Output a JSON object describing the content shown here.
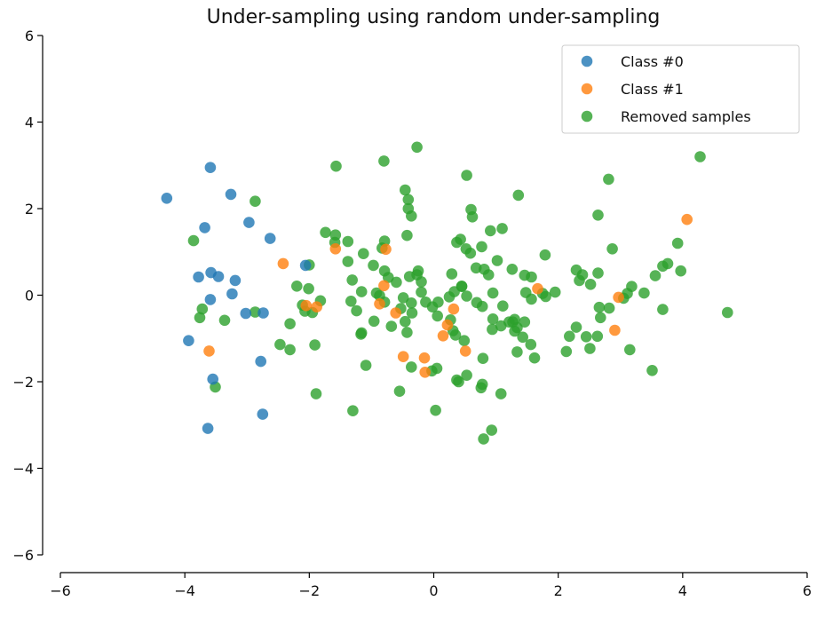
{
  "chart_data": {
    "type": "scatter",
    "title": "Under-sampling using random under-sampling",
    "xlabel": "",
    "ylabel": "",
    "xlim": [
      -6,
      6
    ],
    "ylim": [
      -6,
      6
    ],
    "x_ticks": [
      -6,
      -4,
      -2,
      0,
      2,
      4,
      6
    ],
    "y_ticks": [
      -6,
      -4,
      -2,
      0,
      2,
      4,
      6
    ],
    "x_tick_labels": [
      "−6",
      "−4",
      "−2",
      "0",
      "2",
      "4",
      "6"
    ],
    "y_tick_labels": [
      "−6",
      "−4",
      "−2",
      "0",
      "2",
      "4",
      "6"
    ],
    "grid": false,
    "legend_position": "top-right",
    "series": [
      {
        "name": "Class #0",
        "color": "#1f77b4",
        "points": [
          [
            -4.29,
            2.24
          ],
          [
            -3.59,
            2.95
          ],
          [
            -3.26,
            2.33
          ],
          [
            -3.68,
            1.56
          ],
          [
            -2.97,
            1.68
          ],
          [
            -2.63,
            1.31
          ],
          [
            -2.06,
            0.69
          ],
          [
            -3.78,
            0.42
          ],
          [
            -3.58,
            0.52
          ],
          [
            -3.46,
            0.43
          ],
          [
            -3.19,
            0.34
          ],
          [
            -3.24,
            0.03
          ],
          [
            -3.59,
            -0.1
          ],
          [
            -3.02,
            -0.42
          ],
          [
            -2.74,
            -0.41
          ],
          [
            -3.94,
            -1.05
          ],
          [
            -2.78,
            -1.53
          ],
          [
            -3.55,
            -1.94
          ],
          [
            -2.75,
            -2.75
          ],
          [
            -3.63,
            -3.08
          ]
        ]
      },
      {
        "name": "Class #1",
        "color": "#ff7f0e",
        "points": [
          [
            4.07,
            1.75
          ],
          [
            -2.42,
            0.73
          ],
          [
            -1.58,
            1.07
          ],
          [
            -0.77,
            1.06
          ],
          [
            -0.8,
            0.22
          ],
          [
            -2.05,
            -0.24
          ],
          [
            -1.88,
            -0.27
          ],
          [
            -0.87,
            -0.2
          ],
          [
            0.32,
            -0.32
          ],
          [
            2.97,
            -0.05
          ],
          [
            1.67,
            0.15
          ],
          [
            -0.49,
            -1.42
          ],
          [
            -0.15,
            -1.45
          ],
          [
            0.15,
            -0.94
          ],
          [
            0.51,
            -1.29
          ],
          [
            -0.14,
            -1.78
          ],
          [
            -3.61,
            -1.29
          ],
          [
            2.91,
            -0.81
          ],
          [
            0.22,
            -0.69
          ],
          [
            -0.61,
            -0.41
          ]
        ]
      },
      {
        "name": "Removed samples",
        "color": "#2ca02c",
        "points": [
          [
            -0.27,
            3.42
          ],
          [
            4.28,
            3.2
          ],
          [
            -0.8,
            3.1
          ],
          [
            -1.57,
            2.98
          ],
          [
            0.53,
            2.77
          ],
          [
            2.81,
            2.68
          ],
          [
            -2.87,
            2.17
          ],
          [
            -0.46,
            2.43
          ],
          [
            -0.41,
            2.21
          ],
          [
            1.36,
            2.31
          ],
          [
            -0.41,
            2.0
          ],
          [
            -0.36,
            1.83
          ],
          [
            0.6,
            1.98
          ],
          [
            0.62,
            1.81
          ],
          [
            2.64,
            1.85
          ],
          [
            -3.86,
            1.26
          ],
          [
            -1.74,
            1.45
          ],
          [
            -1.58,
            1.39
          ],
          [
            -1.59,
            1.22
          ],
          [
            -1.38,
            1.24
          ],
          [
            -0.79,
            1.25
          ],
          [
            -0.83,
            1.09
          ],
          [
            -0.43,
            1.38
          ],
          [
            0.37,
            1.22
          ],
          [
            0.43,
            1.29
          ],
          [
            0.52,
            1.07
          ],
          [
            0.59,
            0.97
          ],
          [
            0.77,
            1.12
          ],
          [
            0.91,
            1.49
          ],
          [
            1.1,
            1.54
          ],
          [
            2.87,
            1.07
          ],
          [
            3.92,
            1.2
          ],
          [
            -1.13,
            0.96
          ],
          [
            -1.38,
            0.78
          ],
          [
            -0.97,
            0.69
          ],
          [
            -2.0,
            0.7
          ],
          [
            -0.79,
            0.56
          ],
          [
            -0.73,
            0.41
          ],
          [
            -0.6,
            0.3
          ],
          [
            -0.39,
            0.43
          ],
          [
            -0.25,
            0.56
          ],
          [
            -0.27,
            0.47
          ],
          [
            -0.2,
            0.31
          ],
          [
            0.29,
            0.49
          ],
          [
            0.45,
            0.2
          ],
          [
            0.68,
            0.63
          ],
          [
            0.81,
            0.6
          ],
          [
            0.88,
            0.47
          ],
          [
            1.02,
            0.8
          ],
          [
            1.26,
            0.6
          ],
          [
            1.46,
            0.46
          ],
          [
            1.57,
            0.42
          ],
          [
            1.79,
            0.93
          ],
          [
            2.29,
            0.58
          ],
          [
            2.34,
            0.34
          ],
          [
            2.39,
            0.47
          ],
          [
            2.52,
            0.25
          ],
          [
            2.64,
            0.51
          ],
          [
            3.38,
            0.05
          ],
          [
            3.56,
            0.45
          ],
          [
            3.68,
            0.67
          ],
          [
            3.76,
            0.73
          ],
          [
            3.97,
            0.56
          ],
          [
            -2.2,
            0.21
          ],
          [
            -2.01,
            0.15
          ],
          [
            -1.31,
            0.35
          ],
          [
            -1.16,
            0.08
          ],
          [
            -0.92,
            0.05
          ],
          [
            -0.87,
            -0.01
          ],
          [
            -0.79,
            -0.16
          ],
          [
            -0.49,
            -0.06
          ],
          [
            -0.53,
            -0.31
          ],
          [
            -0.35,
            -0.41
          ],
          [
            -0.2,
            0.07
          ],
          [
            -0.13,
            -0.16
          ],
          [
            -0.02,
            -0.27
          ],
          [
            0.07,
            -0.16
          ],
          [
            0.06,
            -0.48
          ],
          [
            0.25,
            -0.04
          ],
          [
            0.33,
            0.08
          ],
          [
            0.45,
            0.21
          ],
          [
            0.53,
            -0.02
          ],
          [
            0.69,
            -0.17
          ],
          [
            0.78,
            -0.26
          ],
          [
            0.95,
            0.05
          ],
          [
            1.11,
            -0.25
          ],
          [
            1.27,
            -0.62
          ],
          [
            1.34,
            -0.75
          ],
          [
            1.48,
            0.06
          ],
          [
            1.57,
            -0.09
          ],
          [
            1.75,
            0.04
          ],
          [
            1.8,
            -0.03
          ],
          [
            1.95,
            0.07
          ],
          [
            2.66,
            -0.28
          ],
          [
            2.82,
            -0.3
          ],
          [
            3.05,
            -0.07
          ],
          [
            3.11,
            0.04
          ],
          [
            3.18,
            0.2
          ],
          [
            3.68,
            -0.33
          ],
          [
            4.72,
            -0.4
          ],
          [
            -3.72,
            -0.32
          ],
          [
            -3.76,
            -0.52
          ],
          [
            -3.36,
            -0.58
          ],
          [
            -2.87,
            -0.39
          ],
          [
            -2.31,
            -0.66
          ],
          [
            -2.11,
            -0.23
          ],
          [
            -2.07,
            -0.37
          ],
          [
            -1.95,
            -0.4
          ],
          [
            -1.82,
            -0.13
          ],
          [
            -1.33,
            -0.14
          ],
          [
            -1.16,
            -0.87
          ],
          [
            -1.24,
            -0.36
          ],
          [
            -1.17,
            -0.9
          ],
          [
            -0.96,
            -0.6
          ],
          [
            -0.68,
            -0.72
          ],
          [
            -0.43,
            -0.86
          ],
          [
            -0.46,
            -0.61
          ],
          [
            -0.36,
            -0.18
          ],
          [
            0.27,
            -0.57
          ],
          [
            0.31,
            -0.82
          ],
          [
            0.35,
            -0.92
          ],
          [
            0.49,
            -1.05
          ],
          [
            0.94,
            -0.79
          ],
          [
            0.95,
            -0.55
          ],
          [
            1.08,
            -0.71
          ],
          [
            1.21,
            -0.62
          ],
          [
            1.3,
            -0.56
          ],
          [
            1.3,
            -0.83
          ],
          [
            1.43,
            -0.97
          ],
          [
            1.46,
            -0.62
          ],
          [
            1.56,
            -1.14
          ],
          [
            1.34,
            -1.31
          ],
          [
            2.13,
            -1.3
          ],
          [
            2.18,
            -0.95
          ],
          [
            2.29,
            -0.74
          ],
          [
            2.45,
            -0.96
          ],
          [
            2.51,
            -1.23
          ],
          [
            2.63,
            -0.95
          ],
          [
            2.68,
            -0.52
          ],
          [
            3.15,
            -1.26
          ],
          [
            -2.47,
            -1.14
          ],
          [
            -2.31,
            -1.26
          ],
          [
            -1.91,
            -1.15
          ],
          [
            -1.09,
            -1.62
          ],
          [
            -0.36,
            -1.66
          ],
          [
            -0.03,
            -1.75
          ],
          [
            0.05,
            -1.69
          ],
          [
            0.37,
            -1.96
          ],
          [
            0.53,
            -1.85
          ],
          [
            0.4,
            -2.0
          ],
          [
            0.78,
            -2.06
          ],
          [
            0.76,
            -2.14
          ],
          [
            1.08,
            -2.28
          ],
          [
            0.79,
            -1.46
          ],
          [
            1.62,
            -1.45
          ],
          [
            3.51,
            -1.74
          ],
          [
            -3.51,
            -2.12
          ],
          [
            -1.89,
            -2.28
          ],
          [
            -0.55,
            -2.22
          ],
          [
            0.03,
            -2.66
          ],
          [
            -1.3,
            -2.67
          ],
          [
            0.93,
            -3.12
          ],
          [
            0.8,
            -3.32
          ]
        ]
      }
    ]
  }
}
